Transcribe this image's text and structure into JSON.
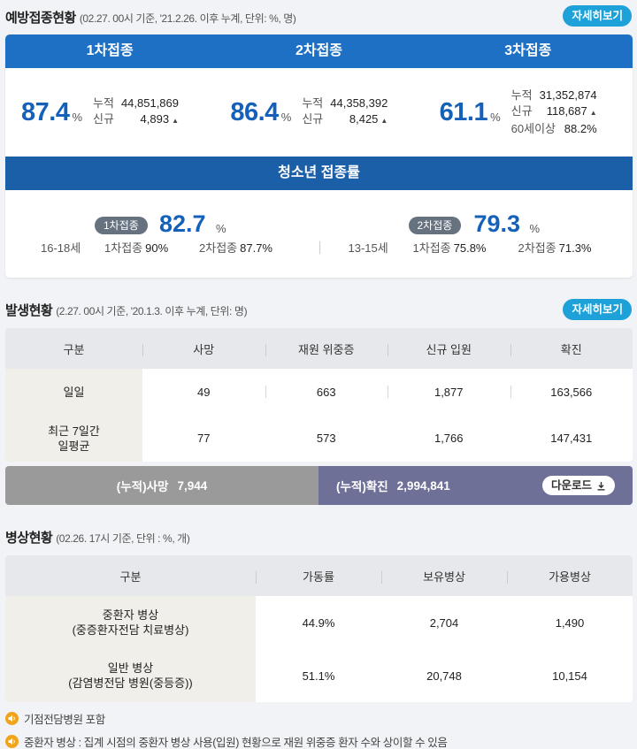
{
  "vaccination": {
    "title": "예방접종현황",
    "subtitle": "(02.27. 00시 기준, '21.2.26. 이후 누계, 단위: %, 명)",
    "more_label": "자세히보기",
    "doses": [
      {
        "header": "1차접종",
        "pct": "87.4",
        "unit": "%",
        "cum_label": "누적",
        "cum": "44,851,869",
        "new_label": "신규",
        "new": "4,893"
      },
      {
        "header": "2차접종",
        "pct": "86.4",
        "unit": "%",
        "cum_label": "누적",
        "cum": "44,358,392",
        "new_label": "신규",
        "new": "8,425"
      },
      {
        "header": "3차접종",
        "pct": "61.1",
        "unit": "%",
        "cum_label": "누적",
        "cum": "31,352,874",
        "new_label": "신규",
        "new": "118,687",
        "extra_label": "60세이상",
        "extra": "88.2%"
      }
    ],
    "teen": {
      "title": "청소년 접종률",
      "groups": [
        {
          "age": "16-18세",
          "badge": "1차접종",
          "pct": "82.7",
          "unit": "%",
          "s1_label": "1차접종",
          "s1": "90%",
          "s2_label": "2차접종",
          "s2": "87.7%"
        },
        {
          "age": "13-15세",
          "badge": "2차접종",
          "pct": "79.3",
          "unit": "%",
          "s1_label": "1차접종",
          "s1": "75.8%",
          "s2_label": "2차접종",
          "s2": "71.3%"
        }
      ]
    }
  },
  "outbreak": {
    "title": "발생현황",
    "subtitle": "(2.27. 00시 기준, '20.1.3. 이후 누계, 단위: 명)",
    "more_label": "자세히보기",
    "columns": [
      "구분",
      "사망",
      "재원 위중증",
      "신규 입원",
      "확진"
    ],
    "rows": [
      {
        "label": [
          "일일"
        ],
        "values": [
          "49",
          "663",
          "1,877",
          "163,566"
        ]
      },
      {
        "label": [
          "최근 7일간",
          "일평균"
        ],
        "values": [
          "77",
          "573",
          "1,766",
          "147,431"
        ]
      }
    ],
    "cum_death_label": "(누적)사망",
    "cum_death": "7,944",
    "cum_conf_label": "(누적)확진",
    "cum_conf": "2,994,841",
    "download_label": "다운로드"
  },
  "beds": {
    "title": "병상현황",
    "subtitle": "(02.26. 17시 기준, 단위 : %, 개)",
    "columns": [
      "구분",
      "가동률",
      "보유병상",
      "가용병상"
    ],
    "rows": [
      {
        "label": [
          "중환자 병상",
          "(중증환자전담 치료병상)"
        ],
        "values": [
          "44.9%",
          "2,704",
          "1,490"
        ]
      },
      {
        "label": [
          "일반 병상",
          "(감염병전담 병원(중등증))"
        ],
        "values": [
          "51.1%",
          "20,748",
          "10,154"
        ]
      }
    ]
  },
  "notes": [
    "기점전담병원 포함",
    "중환자 병상 : 집계 시점의 중환자 병상 사용(입원) 현황으로 재원 위중증 환자 수와 상이할 수 있음"
  ],
  "colors": {
    "primary_blue": "#1e70c5",
    "teen_blue": "#1b5fa9",
    "value_blue": "#1561b9",
    "more_button": "#1ea0d8",
    "death_bar": "#9a9a9a",
    "confirm_bar": "#6f7097",
    "note_icon": "#f0a41c"
  }
}
